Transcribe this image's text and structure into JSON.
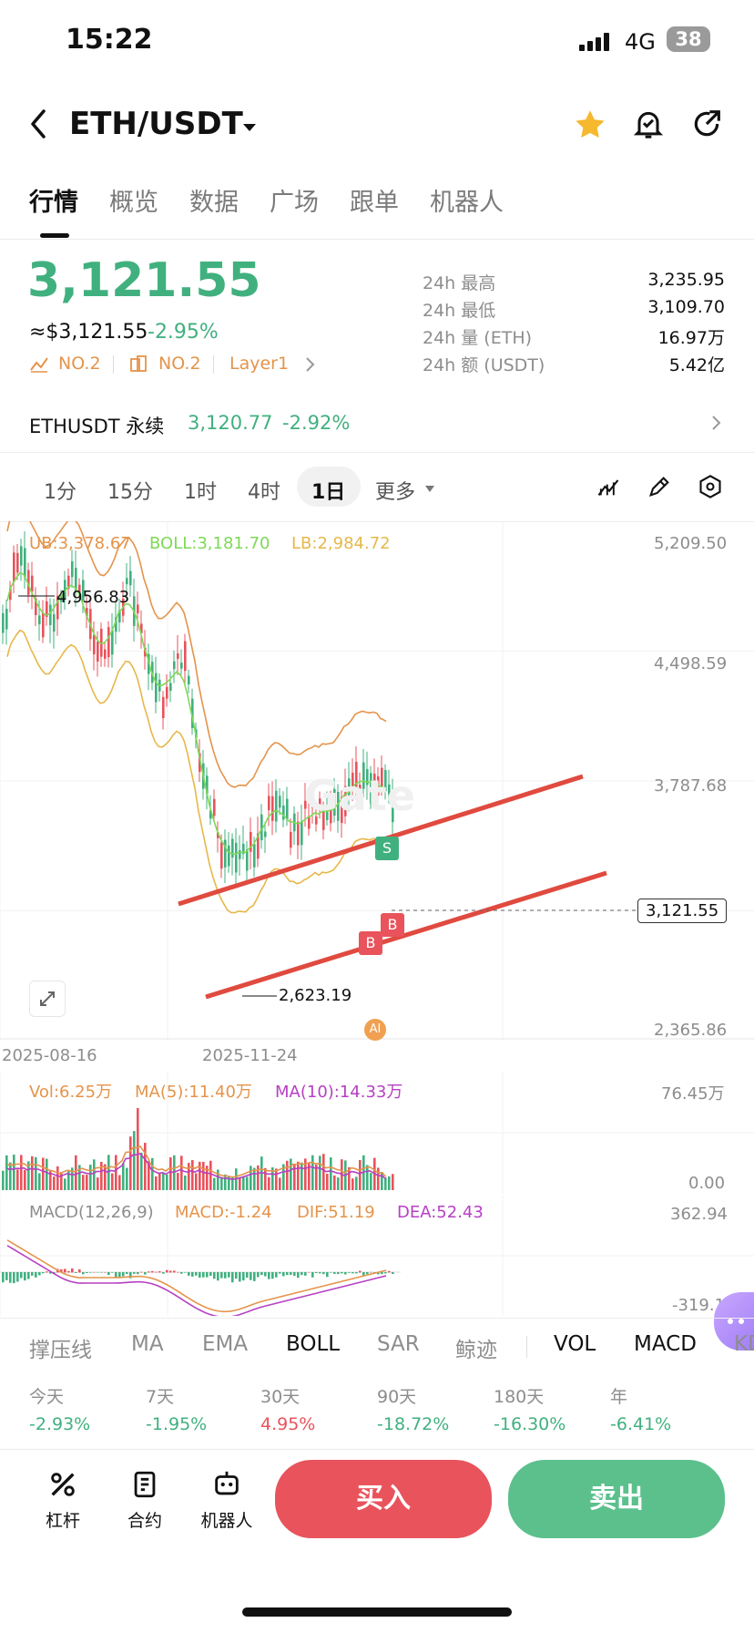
{
  "status": {
    "time": "15:22",
    "network": "4G",
    "battery": "38"
  },
  "header": {
    "pair": "ETH/USDT"
  },
  "tabs": [
    "行情",
    "概览",
    "数据",
    "广场",
    "跟单",
    "机器人"
  ],
  "ticker": {
    "price": "3,121.55",
    "usd_price": "≈$3,121.55",
    "change": "-2.95%",
    "rank1": "NO.2",
    "rank2": "NO.2",
    "category": "Layer1",
    "stats": [
      {
        "label": "24h  最高",
        "value": "3,235.95"
      },
      {
        "label": "24h  最低",
        "value": "3,109.70"
      },
      {
        "label": "24h  量 (ETH)",
        "value": "16.97万"
      },
      {
        "label": "24h  额 (USDT)",
        "value": "5.42亿"
      }
    ]
  },
  "perp": {
    "name": "ETHUSDT 永续",
    "price": "3,120.77",
    "change": "-2.92%"
  },
  "periods": [
    "1分",
    "15分",
    "1时",
    "4时",
    "1日",
    "更多"
  ],
  "boll": {
    "ub": "UB:3,378.67",
    "boll": "BOLL:3,181.70",
    "lb": "LB:2,984.72"
  },
  "price_axis": [
    "5,209.50",
    "4,498.59",
    "3,787.68",
    "3,121.55",
    "2,365.86"
  ],
  "annotations": {
    "high": "4,956.83",
    "low": "2,623.19",
    "sell": "S",
    "buy": "B",
    "ai": "AI",
    "watermark": "Gate"
  },
  "date_axis": [
    "2025-08-16",
    "2025-11-24"
  ],
  "volume": {
    "vol": "Vol:6.25万",
    "ma5": "MA(5):11.40万",
    "ma10": "MA(10):14.33万",
    "axis_top": "76.45万",
    "axis_bottom": "0.00"
  },
  "macd": {
    "title": "MACD(12,26,9)",
    "macd": "MACD:-1.24",
    "dif": "DIF:51.19",
    "dea": "DEA:52.43",
    "axis_top": "362.94",
    "axis_bottom": "-319.1"
  },
  "indicator_tabs": [
    "撑压线",
    "MA",
    "EMA",
    "BOLL",
    "SAR",
    "鲸迹",
    "VOL",
    "MACD",
    "KD"
  ],
  "changes": [
    {
      "label": "今天",
      "value": "-2.93%"
    },
    {
      "label": "7天",
      "value": "-1.95%"
    },
    {
      "label": "30天",
      "value": "4.95%"
    },
    {
      "label": "90天",
      "value": "-18.72%"
    },
    {
      "label": "180天",
      "value": "-16.30%"
    },
    {
      "label": "年",
      "value": "-6.41%"
    }
  ],
  "bottom": {
    "lever": "杠杆",
    "contract": "合约",
    "bot": "机器人",
    "buy": "买入",
    "sell": "卖出"
  },
  "colors": {
    "up": "#41b07f",
    "down": "#e8535c",
    "ub": "#e4944b",
    "boll": "#7ed957",
    "lb": "#e6b84a",
    "dif": "#e4944b",
    "dea": "#b640c4"
  }
}
